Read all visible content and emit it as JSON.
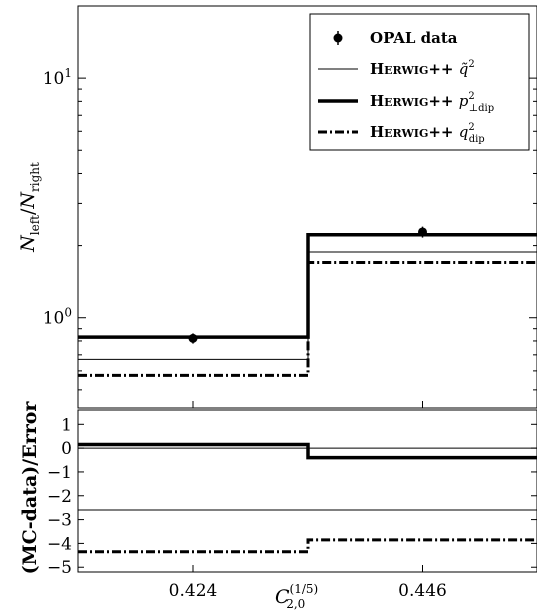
{
  "chart_data": [
    {
      "panel": "main",
      "type": "line",
      "subtype": "step-histogram",
      "title": "",
      "xlabel": "C_{2,0}^{(1/5)}",
      "ylabel": "N_left/N_right",
      "yscale": "log",
      "ylim": [
        0.42,
        20
      ],
      "x_tick_labels": [
        "0.424",
        "0.446"
      ],
      "y_tick_labels": [
        {
          "base": "10",
          "exp": "0",
          "value": 1
        },
        {
          "base": "10",
          "exp": "1",
          "value": 10
        }
      ],
      "bins": [
        "0.424",
        "0.446"
      ],
      "data_points": {
        "name": "OPAL data",
        "values": [
          0.82,
          2.28
        ],
        "errors": [
          0.04,
          0.12
        ]
      },
      "series": [
        {
          "name": "HERWIG++ q̃²",
          "style": "thin",
          "values": [
            0.67,
            1.88
          ]
        },
        {
          "name": "HERWIG++ p²⊥dip",
          "style": "thick",
          "values": [
            0.83,
            2.22
          ]
        },
        {
          "name": "HERWIG++ q²dip",
          "style": "dashdot",
          "values": [
            0.575,
            1.7
          ]
        }
      ],
      "legend": {
        "placement": "top-right",
        "entries": [
          {
            "prefix": "OPAL data",
            "name": "",
            "sub": "",
            "sup": ""
          },
          {
            "prefix": "Herwig++ ",
            "name": "q̃",
            "sub": "",
            "sup": "2"
          },
          {
            "prefix": "Herwig++ ",
            "name": "p",
            "sub": "⊥dip",
            "sup": "2"
          },
          {
            "prefix": "Herwig++ ",
            "name": "q",
            "sub": "dip",
            "sup": "2"
          }
        ]
      }
    },
    {
      "panel": "ratio",
      "type": "line",
      "subtype": "step-histogram",
      "ylabel": "(MC-data)/Error",
      "ylim": [
        -5.2,
        1.6
      ],
      "y_tick_labels": [
        "1",
        "0",
        "−1",
        "−2",
        "−3",
        "−4",
        "−5"
      ],
      "y_tick_values": [
        1,
        0,
        -1,
        -2,
        -3,
        -4,
        -5
      ],
      "series": [
        {
          "name": "HERWIG++ q̃²",
          "style": "thin",
          "values": [
            -2.6,
            -2.6
          ]
        },
        {
          "name": "HERWIG++ p²⊥dip",
          "style": "thick",
          "values": [
            0.15,
            -0.4
          ]
        },
        {
          "name": "HERWIG++ q²dip",
          "style": "dashdot",
          "values": [
            -4.35,
            -3.85
          ]
        }
      ]
    }
  ]
}
